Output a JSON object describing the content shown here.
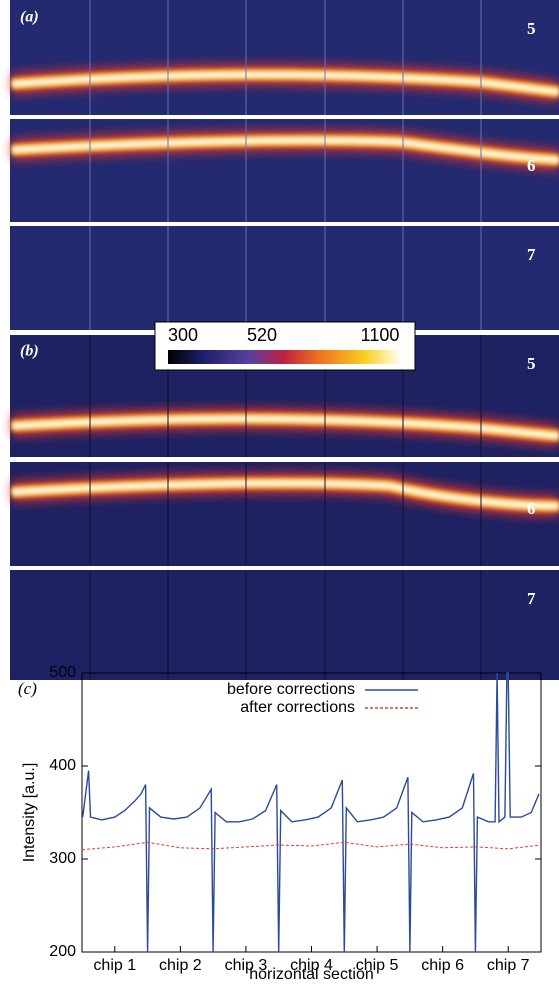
{
  "panels": [
    {
      "label": "(a)",
      "strip_labels": [
        "5",
        "6",
        "7"
      ]
    },
    {
      "label": "(b)",
      "strip_labels": [
        "5",
        "6",
        "7"
      ]
    }
  ],
  "colorbar": {
    "ticks": [
      300,
      520,
      1100
    ]
  },
  "chart_data": {
    "type": "line",
    "panel_label": "(c)",
    "xlabel": "horizontal section",
    "ylabel": "Intensity [a.u.]",
    "xlim": [
      0,
      7
    ],
    "ylim": [
      200,
      500
    ],
    "yticks": [
      200,
      300,
      400,
      500
    ],
    "xticks": [
      {
        "value": 0.5,
        "label": "chip 1"
      },
      {
        "value": 1.5,
        "label": "chip 2"
      },
      {
        "value": 2.5,
        "label": "chip 3"
      },
      {
        "value": 3.5,
        "label": "chip 4"
      },
      {
        "value": 4.5,
        "label": "chip 5"
      },
      {
        "value": 5.5,
        "label": "chip 6"
      },
      {
        "value": 6.5,
        "label": "chip 7"
      }
    ],
    "legend": "top",
    "series": [
      {
        "name": "before corrections",
        "color": "#2b4a9e",
        "style": "solid",
        "x": [
          0.01,
          0.1,
          0.13,
          0.3,
          0.5,
          0.65,
          0.8,
          0.9,
          0.97,
          1.0,
          1.03,
          1.2,
          1.4,
          1.6,
          1.8,
          1.97,
          2.0,
          2.03,
          2.2,
          2.4,
          2.6,
          2.8,
          2.97,
          3.0,
          3.03,
          3.2,
          3.4,
          3.6,
          3.8,
          3.97,
          4.0,
          4.03,
          4.2,
          4.4,
          4.6,
          4.8,
          4.97,
          5.0,
          5.03,
          5.2,
          5.4,
          5.6,
          5.8,
          5.97,
          6.0,
          6.03,
          6.2,
          6.3,
          6.33,
          6.36,
          6.45,
          6.48,
          6.5,
          6.53,
          6.7,
          6.85,
          6.97
        ],
        "values": [
          345,
          395,
          345,
          342,
          345,
          352,
          362,
          370,
          380,
          200,
          355,
          345,
          343,
          345,
          355,
          375,
          200,
          350,
          340,
          340,
          343,
          352,
          380,
          200,
          352,
          340,
          342,
          345,
          355,
          385,
          200,
          355,
          340,
          342,
          345,
          355,
          388,
          200,
          350,
          340,
          342,
          345,
          355,
          392,
          200,
          345,
          340,
          340,
          500,
          340,
          345,
          500,
          500,
          345,
          345,
          350,
          370
        ]
      },
      {
        "name": "after corrections",
        "color": "#e0412a",
        "style": "dashed",
        "x": [
          0,
          0.5,
          1,
          1.5,
          2,
          2.5,
          3,
          3.5,
          4,
          4.5,
          5,
          5.5,
          6,
          6.5,
          7
        ],
        "values": [
          310,
          313,
          318,
          312,
          311,
          313,
          315,
          314,
          318,
          313,
          316,
          312,
          313,
          311,
          315
        ]
      }
    ]
  }
}
